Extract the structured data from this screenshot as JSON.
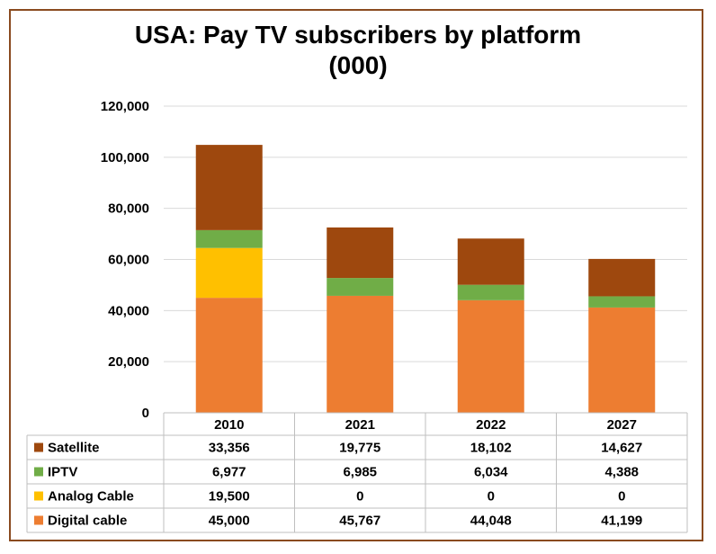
{
  "chart_data": {
    "type": "bar",
    "stacked": true,
    "title_line1": "USA: Pay TV subscribers by platform",
    "title_line2": "(000)",
    "categories": [
      "2010",
      "2021",
      "2022",
      "2027"
    ],
    "series": [
      {
        "name": "Digital cable",
        "color": "#ED7D31",
        "values": [
          45000,
          45767,
          44048,
          41199
        ],
        "labels": [
          "45,000",
          "45,767",
          "44,048",
          "41,199"
        ]
      },
      {
        "name": "Analog Cable",
        "color": "#FFC000",
        "values": [
          19500,
          0,
          0,
          0
        ],
        "labels": [
          "19,500",
          "0",
          "0",
          "0"
        ]
      },
      {
        "name": "IPTV",
        "color": "#70AD47",
        "values": [
          6977,
          6985,
          6034,
          4388
        ],
        "labels": [
          "6,977",
          "6,985",
          "6,034",
          "4,388"
        ]
      },
      {
        "name": "Satellite",
        "color": "#9E480E",
        "values": [
          33356,
          19775,
          18102,
          14627
        ],
        "labels": [
          "33,356",
          "19,775",
          "18,102",
          "14,627"
        ]
      }
    ],
    "table_order": [
      "Satellite",
      "IPTV",
      "Analog Cable",
      "Digital cable"
    ],
    "ylim": [
      0,
      120000
    ],
    "yticks": [
      0,
      20000,
      40000,
      60000,
      80000,
      100000,
      120000
    ],
    "ytick_labels": [
      "0",
      "20,000",
      "40,000",
      "60,000",
      "80,000",
      "100,000",
      "120,000"
    ],
    "grid": true,
    "legend": "data-table"
  }
}
